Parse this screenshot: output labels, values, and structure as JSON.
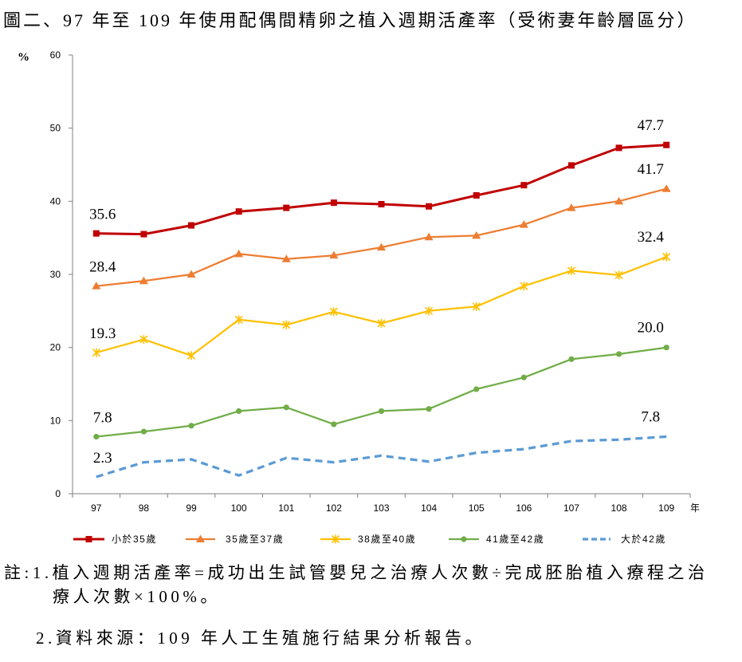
{
  "chart_data": {
    "type": "line",
    "title": "圖二、97 年至 109 年使用配偶間精卵之植入週期活產率（受術妻年齡層區分）",
    "xlabel": "年",
    "ylabel": "%",
    "ylim": [
      0,
      60
    ],
    "y_ticks": [
      0,
      10,
      20,
      30,
      40,
      50,
      60
    ],
    "categories": [
      "97",
      "98",
      "99",
      "100",
      "101",
      "102",
      "103",
      "104",
      "105",
      "106",
      "107",
      "108",
      "109"
    ],
    "grid": false,
    "legend_position": "bottom",
    "series": [
      {
        "name": "小於35歲",
        "color": "#C00000",
        "marker": "square",
        "line_style": "solid",
        "values": [
          35.6,
          35.5,
          36.7,
          38.6,
          39.1,
          39.8,
          39.6,
          39.3,
          40.8,
          42.2,
          44.9,
          47.3,
          47.7
        ],
        "data_labels": [
          {
            "category": "97",
            "text": "35.6"
          },
          {
            "category": "109",
            "text": "47.7"
          }
        ]
      },
      {
        "name": "35歲至37歲",
        "color": "#ED7D31",
        "marker": "triangle",
        "line_style": "solid",
        "values": [
          28.4,
          29.1,
          30.0,
          32.8,
          32.1,
          32.6,
          33.7,
          35.1,
          35.3,
          36.8,
          39.1,
          40.0,
          41.7
        ],
        "data_labels": [
          {
            "category": "97",
            "text": "28.4"
          },
          {
            "category": "109",
            "text": "41.7"
          }
        ]
      },
      {
        "name": "38歲至40歲",
        "color": "#FFC000",
        "marker": "star",
        "line_style": "solid",
        "values": [
          19.3,
          21.1,
          18.9,
          23.8,
          23.1,
          24.9,
          23.3,
          25.0,
          25.6,
          28.4,
          30.5,
          29.9,
          32.4
        ],
        "data_labels": [
          {
            "category": "97",
            "text": "19.3"
          },
          {
            "category": "109",
            "text": "32.4"
          }
        ]
      },
      {
        "name": "41歲至42歲",
        "color": "#70AD47",
        "marker": "circle",
        "line_style": "solid",
        "values": [
          7.8,
          8.5,
          9.3,
          11.3,
          11.8,
          9.5,
          11.3,
          11.6,
          14.3,
          15.9,
          18.4,
          19.1,
          20.0
        ],
        "data_labels": [
          {
            "category": "97",
            "text": "7.8"
          },
          {
            "category": "109",
            "text": "20.0"
          }
        ]
      },
      {
        "name": "大於42歲",
        "color": "#5B9BD5",
        "marker": "none",
        "line_style": "dashed",
        "values": [
          2.3,
          4.3,
          4.7,
          2.5,
          4.9,
          4.3,
          5.2,
          4.4,
          5.6,
          6.1,
          7.2,
          7.4,
          7.8
        ],
        "data_labels": [
          {
            "category": "97",
            "text": "2.3"
          },
          {
            "category": "109",
            "text": "7.8"
          }
        ]
      }
    ]
  },
  "notes": {
    "line1": "註:1.植入週期活產率=成功出生試管嬰兒之治療人次數÷完成胚胎植入療程之治",
    "line2": "療人次數×100%。",
    "line3": "2.資料來源：109 年人工生殖施行結果分析報告。"
  }
}
